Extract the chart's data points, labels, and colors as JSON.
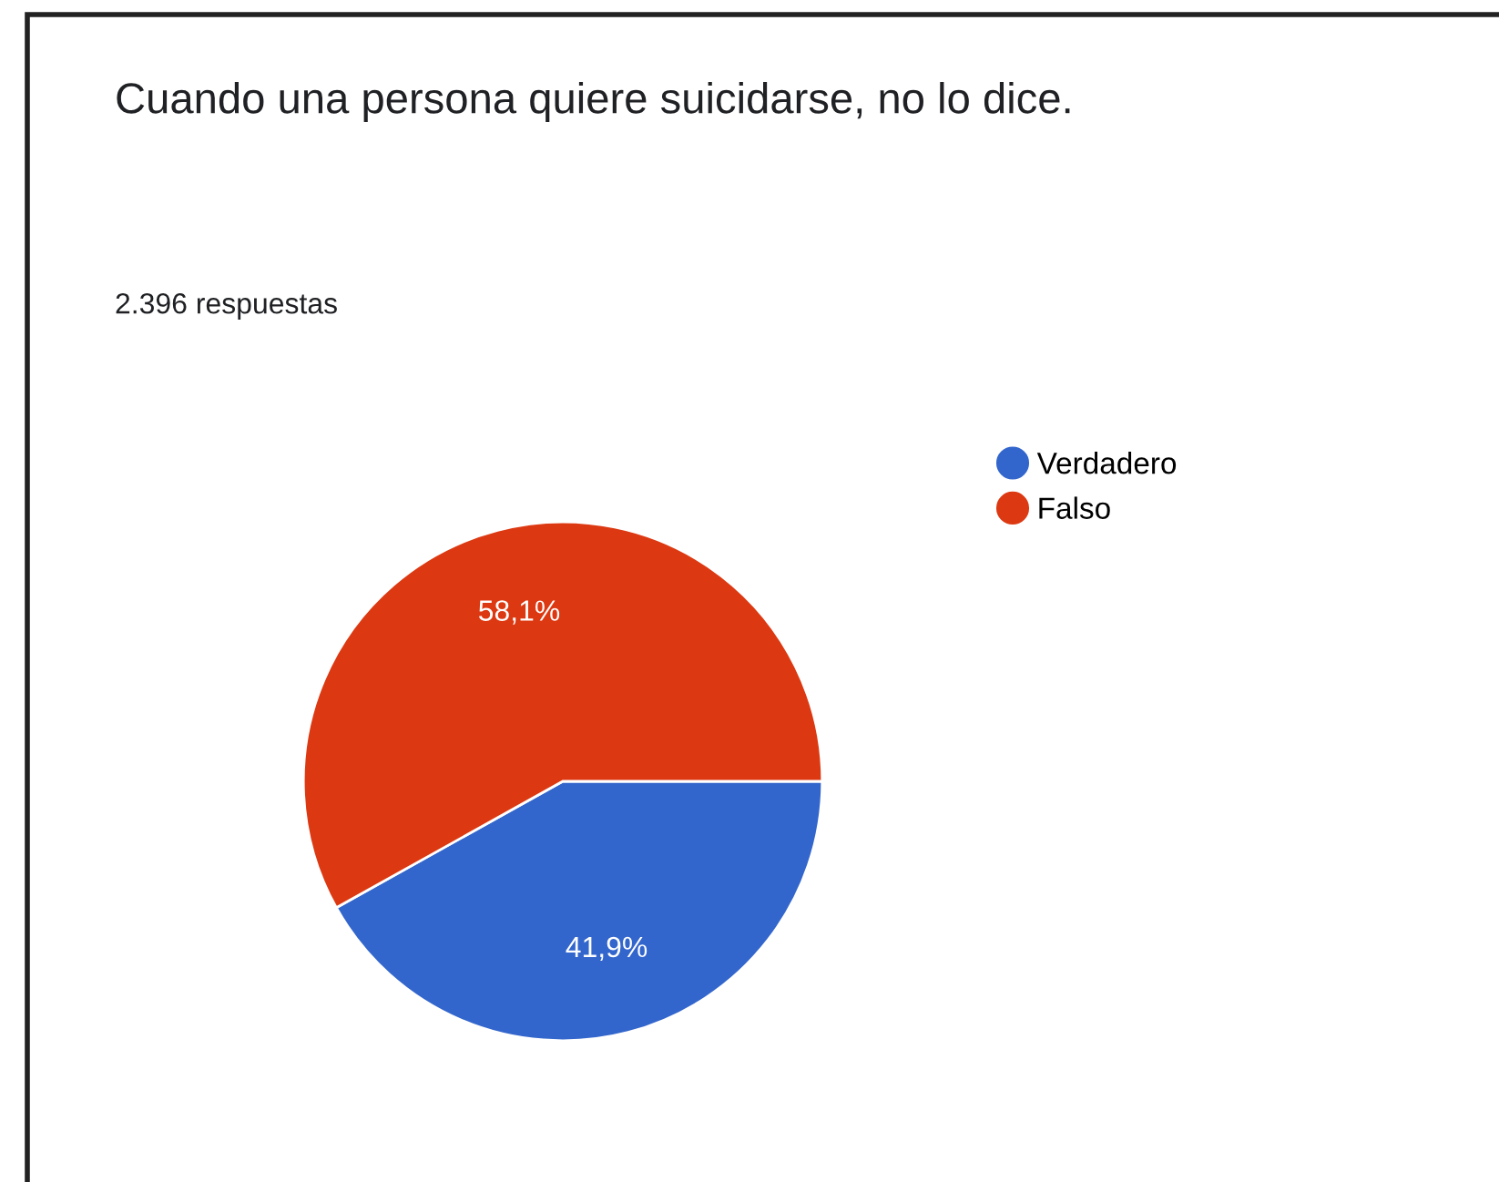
{
  "chart_data": {
    "type": "pie",
    "title": "Cuando una persona quiere suicidarse, no lo dice.",
    "subtitle": "2.396 respuestas",
    "categories": [
      "Verdadero",
      "Falso"
    ],
    "values": [
      41.9,
      58.1
    ],
    "colors": [
      "#3366cc",
      "#dc3912"
    ],
    "value_labels": [
      "41,9%",
      "58,1%"
    ],
    "legend": "top right"
  }
}
